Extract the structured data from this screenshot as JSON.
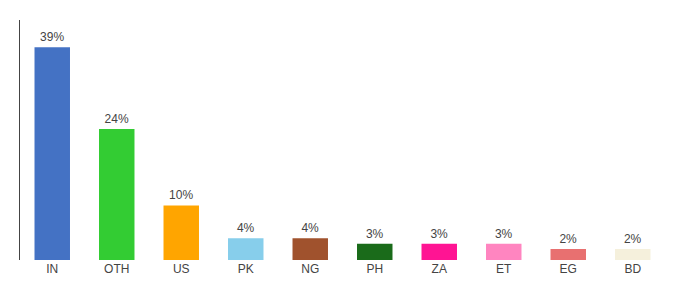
{
  "chart_data": {
    "type": "bar",
    "categories": [
      "IN",
      "OTH",
      "US",
      "PK",
      "NG",
      "PH",
      "ZA",
      "ET",
      "EG",
      "BD"
    ],
    "values": [
      39,
      24,
      10,
      4,
      4,
      3,
      3,
      3,
      2,
      2
    ],
    "value_labels": [
      "39%",
      "24%",
      "10%",
      "4%",
      "4%",
      "3%",
      "3%",
      "3%",
      "2%",
      "2%"
    ],
    "colors": [
      "#4472C4",
      "#33CC33",
      "#FFA500",
      "#87CEEB",
      "#A0522D",
      "#1A6B1A",
      "#FF1493",
      "#FF85C0",
      "#E87070",
      "#F5F0DC"
    ],
    "ylim": [
      0,
      44
    ],
    "data_labels": true,
    "tick_labels": "x",
    "grid": false
  }
}
